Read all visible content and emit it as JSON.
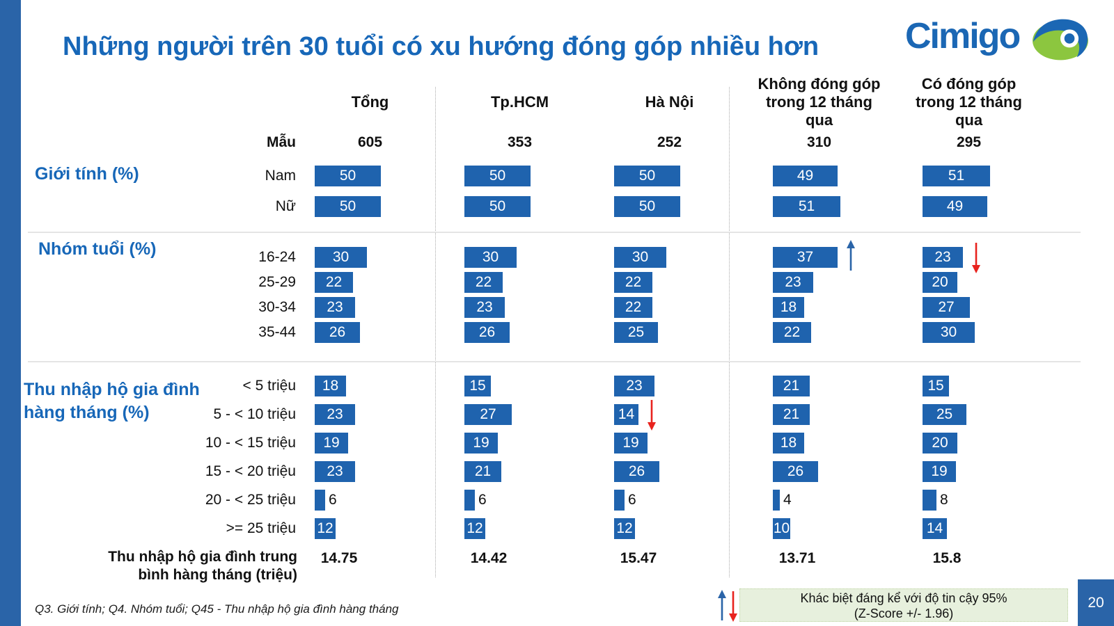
{
  "slide": {
    "title": "Những người trên 30 tuổi có xu hướng đóng góp nhiều hơn",
    "footnote": "Q3. Giới tính; Q4. Nhóm tuổi; Q45 - Thu nhập hộ gia đình hàng tháng",
    "page_number": "20",
    "logo": {
      "text": "Cimigo",
      "mark": "eye-icon"
    },
    "legend": {
      "up_arrow": "up-arrow-icon",
      "down_arrow": "down-arrow-icon",
      "line1": "Khác biệt đáng kể với độ tin cậy 95%",
      "line2": "(Z-Score +/- 1.96)"
    }
  },
  "colors": {
    "bar-blue": "#1F63AE",
    "strip-blue": "#2A64A8",
    "title-blue": "#1767B8",
    "logo-blue": "#1B67B4",
    "logo-green": "#8CC63F",
    "arrow-red": "#E8231E",
    "arrow-blue": "#2A64A8",
    "legend-bg": "#E7F0DD",
    "page-badge-bg": "#2A64A8"
  },
  "chart_data": {
    "type": "bar",
    "title": "Những người trên 30 tuổi có xu hướng đóng góp nhiều hơn",
    "orientation": "horizontal",
    "unit": "%",
    "columns": [
      "Tổng",
      "Tp.HCM",
      "Hà Nội",
      "Không đóng góp trong 12 tháng qua",
      "Có đóng góp trong 12 tháng qua"
    ],
    "sample_label": "Mẫu",
    "sample_sizes": [
      605,
      353,
      252,
      310,
      295
    ],
    "sections": [
      {
        "label": "Giới tính (%)",
        "rows": [
          {
            "label": "Nam",
            "values": [
              50,
              50,
              50,
              49,
              51
            ]
          },
          {
            "label": "Nữ",
            "values": [
              50,
              50,
              50,
              51,
              49
            ]
          }
        ]
      },
      {
        "label": "Nhóm tuổi (%)",
        "rows": [
          {
            "label": "16-24",
            "values": [
              30,
              30,
              30,
              37,
              23
            ],
            "arrows": {
              "3": "up",
              "4": "down"
            }
          },
          {
            "label": "25-29",
            "values": [
              22,
              22,
              22,
              23,
              20
            ]
          },
          {
            "label": "30-34",
            "values": [
              23,
              23,
              22,
              18,
              27
            ]
          },
          {
            "label": "35-44",
            "values": [
              26,
              26,
              25,
              22,
              30
            ]
          }
        ]
      },
      {
        "label": "Thu nhập hộ gia đình hàng tháng (%)",
        "rows": [
          {
            "label": "< 5 triệu",
            "values": [
              18,
              15,
              23,
              21,
              15
            ]
          },
          {
            "label": "5 - < 10 triệu",
            "values": [
              23,
              27,
              14,
              21,
              25
            ],
            "arrows": {
              "2": "down"
            }
          },
          {
            "label": "10 - < 15 triệu",
            "values": [
              19,
              19,
              19,
              18,
              20
            ]
          },
          {
            "label": "15 - < 20 triệu",
            "values": [
              23,
              21,
              26,
              26,
              19
            ]
          },
          {
            "label": "20 - < 25 triệu",
            "values": [
              6,
              6,
              6,
              4,
              8
            ]
          },
          {
            "label": ">= 25 triệu",
            "values": [
              12,
              12,
              12,
              10,
              14
            ]
          }
        ]
      }
    ],
    "mean_row": {
      "label": "Thu nhập hộ gia đình trung bình hàng tháng (triệu)",
      "label_lines": [
        "Thu nhập hộ gia đình trung",
        "bình hàng tháng (triệu)"
      ],
      "values": [
        "14.75",
        "14.42",
        "15.47",
        "13.71",
        "15.8"
      ]
    },
    "annotations": "Arrows mark significant differences at 95% confidence (Z-Score +/- 1.96)"
  }
}
